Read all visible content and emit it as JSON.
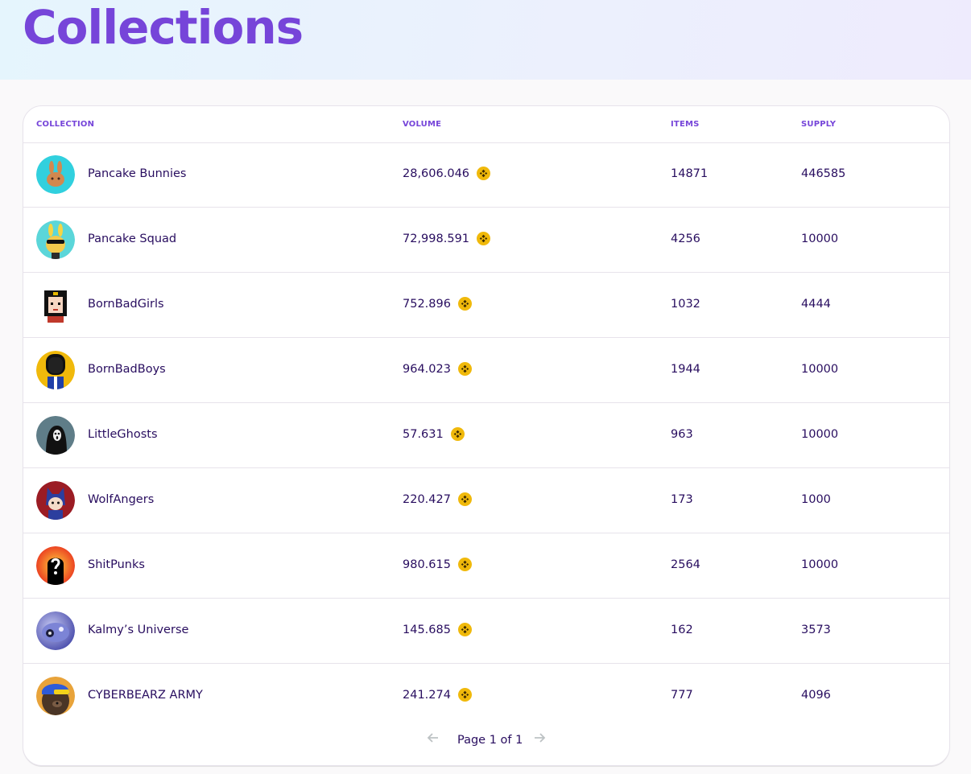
{
  "page": {
    "title": "Collections"
  },
  "table": {
    "headers": {
      "collection": "COLLECTION",
      "volume": "VOLUME",
      "items": "ITEMS",
      "supply": "SUPPLY"
    },
    "rows": [
      {
        "name": "Pancake Bunnies",
        "volume": "28,606.046",
        "items": "14871",
        "supply": "446585",
        "avatar": "pancake-bunny-avatar"
      },
      {
        "name": "Pancake Squad",
        "volume": "72,998.591",
        "items": "4256",
        "supply": "10000",
        "avatar": "pancake-squad-avatar"
      },
      {
        "name": "BornBadGirls",
        "volume": "752.896",
        "items": "1032",
        "supply": "4444",
        "avatar": "born-bad-girl-avatar"
      },
      {
        "name": "BornBadBoys",
        "volume": "964.023",
        "items": "1944",
        "supply": "10000",
        "avatar": "born-bad-boy-avatar"
      },
      {
        "name": "LittleGhosts",
        "volume": "57.631",
        "items": "963",
        "supply": "10000",
        "avatar": "little-ghost-avatar"
      },
      {
        "name": "WolfAngers",
        "volume": "220.427",
        "items": "173",
        "supply": "1000",
        "avatar": "wolf-anger-avatar"
      },
      {
        "name": "ShitPunks",
        "volume": "980.615",
        "items": "2564",
        "supply": "10000",
        "avatar": "shitpunk-avatar"
      },
      {
        "name": "Kalmy’s Universe",
        "volume": "145.685",
        "items": "162",
        "supply": "3573",
        "avatar": "kalmy-universe-avatar"
      },
      {
        "name": "CYBERBEARZ ARMY",
        "volume": "241.274",
        "items": "777",
        "supply": "4096",
        "avatar": "cyberbearz-avatar"
      }
    ],
    "volume_icon": "bnb-coin-icon"
  },
  "pagination": {
    "label": "Page 1 of 1",
    "prev_icon": "arrow-left-icon",
    "next_icon": "arrow-right-icon"
  },
  "colors": {
    "accent": "#7645d9",
    "text": "#280d5f",
    "bnb": "#f0b90b",
    "border": "#e7e3eb"
  }
}
